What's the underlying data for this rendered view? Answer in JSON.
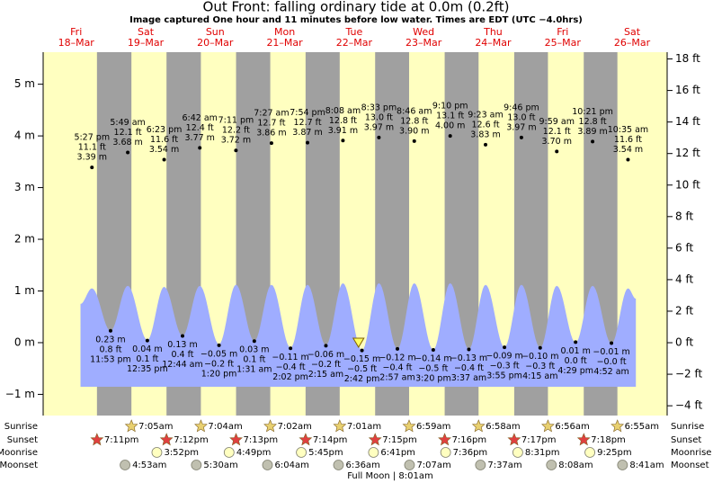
{
  "chart_data": {
    "type": "tide",
    "title": "Out Front: falling  ordinary tide at 0.0m (0.2ft)",
    "subtitle": "Image captured One hour and 11 minutes before low water. Times are EDT (UTC −4.0hrs)",
    "xlim": [
      0.6,
      216.1
    ],
    "ylim": [
      -1.41,
      5.62
    ],
    "y2lim": [
      -4.62,
      18.43
    ],
    "yticks": [
      {
        "value": 5,
        "label": "5 m"
      },
      {
        "value": 4,
        "label": "4 m"
      },
      {
        "value": 3,
        "label": "3 m"
      },
      {
        "value": 2,
        "label": "2 m"
      },
      {
        "value": 1,
        "label": "1 m"
      },
      {
        "value": 0,
        "label": "0 m"
      },
      {
        "value": -1,
        "label": "−1 m"
      }
    ],
    "y2ticks": [
      {
        "value": 18,
        "label": "18 ft"
      },
      {
        "value": 16,
        "label": "16 ft"
      },
      {
        "value": 14,
        "label": "14 ft"
      },
      {
        "value": 12,
        "label": "12 ft"
      },
      {
        "value": 10,
        "label": "10 ft"
      },
      {
        "value": 8,
        "label": "8 ft"
      },
      {
        "value": 6,
        "label": "6 ft"
      },
      {
        "value": 4,
        "label": "4 ft"
      },
      {
        "value": 2,
        "label": "2 ft"
      },
      {
        "value": 0,
        "label": "0 ft"
      },
      {
        "value": -2,
        "label": "−2 ft"
      },
      {
        "value": -4,
        "label": "−4 ft"
      }
    ],
    "days": [
      {
        "day": "Fri",
        "date": "18–Mar",
        "x": 12
      },
      {
        "day": "Sat",
        "date": "19–Mar",
        "x": 36
      },
      {
        "day": "Sun",
        "date": "20–Mar",
        "x": 60
      },
      {
        "day": "Mon",
        "date": "21–Mar",
        "x": 84
      },
      {
        "day": "Tue",
        "date": "22–Mar",
        "x": 108
      },
      {
        "day": "Wed",
        "date": "23–Mar",
        "x": 132
      },
      {
        "day": "Thu",
        "date": "24–Mar",
        "x": 156
      },
      {
        "day": "Fri",
        "date": "25–Mar",
        "x": 180
      },
      {
        "day": "Sat",
        "date": "26–Mar",
        "x": 204
      }
    ],
    "day_color": "#ffffc0",
    "night_color": "#a0a0a0",
    "curve": {
      "color": "#9fadff",
      "x": [
        13.5,
        17.45,
        23.88,
        29.82,
        36.58,
        42.38,
        48.73,
        54.7,
        61.33,
        67.18,
        73.52,
        79.45,
        86.03,
        91.9,
        98.25,
        104.13,
        110.7,
        116.55,
        122.95,
        128.77,
        135.33,
        141.17,
        147.62,
        153.38,
        159.92,
        165.77,
        172.25,
        177.98,
        184.48,
        190.35,
        196.87,
        202.58,
        205.3
      ],
      "values": [
        0.75,
        1.05,
        0.23,
        1.1,
        0.05,
        1.08,
        0.13,
        1.1,
        -0.03,
        1.12,
        0.03,
        1.12,
        -0.1,
        1.12,
        -0.05,
        1.15,
        -0.15,
        1.15,
        -0.12,
        1.15,
        -0.14,
        1.15,
        -0.13,
        1.12,
        -0.09,
        1.12,
        -0.1,
        1.1,
        0.0,
        1.1,
        -0.02,
        1.05,
        0.85
      ]
    },
    "series": [
      {
        "color": "#000",
        "x": [
          17.45,
          29.82,
          42.38,
          54.7,
          67.18,
          79.45,
          91.9,
          104.13,
          116.55,
          128.77,
          141.17,
          153.38,
          165.77,
          177.98,
          190.35,
          202.58
        ],
        "values": [
          3.39,
          3.68,
          3.54,
          3.77,
          3.72,
          3.86,
          3.87,
          3.91,
          3.97,
          3.9,
          4.0,
          3.83,
          3.97,
          3.7,
          3.89,
          3.54
        ],
        "value_labels": [
          "3.39 m",
          "3.68 m",
          "3.54 m",
          "3.77 m",
          "3.72 m",
          "3.86 m",
          "3.87 m",
          "3.91 m",
          "3.97 m",
          "3.90 m",
          "4.00 m",
          "3.83 m",
          "3.97 m",
          "3.70 m",
          "3.89 m",
          "3.54 m"
        ],
        "ft_labels": [
          "11.1 ft",
          "12.1 ft",
          "11.6 ft",
          "12.4 ft",
          "12.2 ft",
          "12.7 ft",
          "12.7 ft",
          "12.8 ft",
          "13.0 ft",
          "12.8 ft",
          "13.1 ft",
          "12.6 ft",
          "13.0 ft",
          "12.1 ft",
          "12.8 ft",
          "11.6 ft"
        ],
        "time_labels": [
          "5:27 pm",
          "5:49 am",
          "6:23 pm",
          "6:42 am",
          "7:11 pm",
          "7:27 am",
          "7:54 pm",
          "8:08 am",
          "8:33 pm",
          "8:46 am",
          "9:10 pm",
          "9:23 am",
          "9:46 pm",
          "9:59 am",
          "10:21 pm",
          "10:35 am"
        ]
      },
      {
        "color": "#000",
        "x": [
          23.88,
          36.58,
          48.73,
          61.33,
          73.52,
          86.03,
          98.25,
          110.7,
          122.95,
          135.33,
          147.62,
          159.92,
          172.25,
          184.48,
          196.87
        ],
        "values": [
          0.23,
          0.04,
          0.13,
          -0.05,
          0.03,
          -0.11,
          -0.06,
          -0.15,
          -0.12,
          -0.14,
          -0.13,
          -0.09,
          -0.1,
          0.01,
          -0.01
        ],
        "value_labels": [
          "0.23 m",
          "0.04 m",
          "0.13 m",
          "−0.05 m",
          "0.03 m",
          "−0.11 m",
          "−0.06 m",
          "−0.15 m",
          "−0.12 m",
          "−0.14 m",
          "−0.13 m",
          "−0.09 m",
          "−0.10 m",
          "0.01 m",
          "−0.01 m"
        ],
        "ft_labels": [
          "0.8 ft",
          "0.1 ft",
          "0.4 ft",
          "−0.2 ft",
          "0.1 ft",
          "−0.4 ft",
          "−0.2 ft",
          "−0.5 ft",
          "−0.4 ft",
          "−0.5 ft",
          "−0.4 ft",
          "−0.3 ft",
          "−0.3 ft",
          "0.0 ft",
          "−0.0 ft"
        ],
        "time_labels": [
          "11:53 pm",
          "12:35 pm",
          "12:44 am",
          "1:20 pm",
          "1:31 am",
          "2:02 pm",
          "2:15 am",
          "2:42 pm",
          "2:57 am",
          "3:20 pm",
          "3:37 am",
          "3:55 pm",
          "4:15 am",
          "4:29 pm",
          "4:52 am"
        ]
      }
    ],
    "now": {
      "x": 109.52,
      "value": 0.0,
      "color": "#ffff60"
    },
    "sunrise": {
      "label": "Sunrise",
      "color": "#e8d070",
      "x": [
        31.08,
        55.07,
        79.03,
        103.02,
        126.98,
        150.97,
        174.93,
        198.92
      ],
      "times": [
        "7:05am",
        "7:04am",
        "7:02am",
        "7:01am",
        "6:59am",
        "6:58am",
        "6:56am",
        "6:55am"
      ]
    },
    "sunset": {
      "label": "Sunset",
      "color": "#e04040",
      "x": [
        19.18,
        43.2,
        67.22,
        91.23,
        115.25,
        139.27,
        163.28,
        187.3
      ],
      "times": [
        "7:11pm",
        "7:12pm",
        "7:13pm",
        "7:14pm",
        "7:15pm",
        "7:16pm",
        "7:17pm",
        "7:18pm"
      ]
    },
    "moonrise": {
      "label": "Moonrise",
      "color": "#ffffc0",
      "x": [
        39.87,
        64.82,
        89.75,
        114.68,
        139.6,
        164.52,
        189.42
      ],
      "times": [
        "3:52pm",
        "4:49pm",
        "5:45pm",
        "6:41pm",
        "7:36pm",
        "8:31pm",
        "9:25pm"
      ]
    },
    "moonset": {
      "label": "Moonset",
      "color": "#c0c0b0",
      "x": [
        28.88,
        53.5,
        78.07,
        102.6,
        127.12,
        151.62,
        176.13,
        200.68
      ],
      "times": [
        "4:53am",
        "5:30am",
        "6:04am",
        "6:36am",
        "7:07am",
        "7:37am",
        "8:08am",
        "8:41am"
      ]
    },
    "moon_phase": "Full Moon | 8:01am"
  }
}
